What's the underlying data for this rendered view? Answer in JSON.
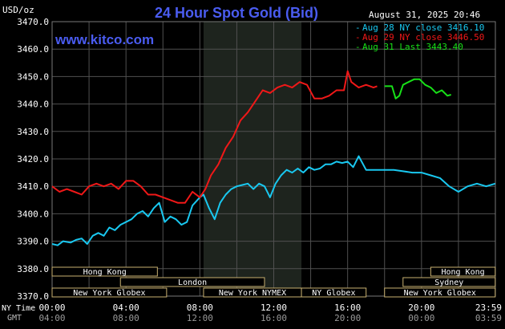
{
  "chart_data": {
    "type": "line",
    "title": "24 Hour Spot Gold (Bid)",
    "website": "www.kitco.com",
    "ylabel": "USD/oz",
    "timestamp": "August 31, 2025 20:46",
    "ylim": [
      3370,
      3470
    ],
    "y_ticks": [
      "3470.0",
      "3460.0",
      "3450.0",
      "3440.0",
      "3430.0",
      "3420.0",
      "3410.0",
      "3400.0",
      "3390.0",
      "3380.0",
      "3370.0"
    ],
    "x_row_label_ny": "NY Time",
    "x_row_label_gmt": "GMT",
    "x_ticks_ny": [
      "00:00",
      "04:00",
      "08:00",
      "12:00",
      "16:00",
      "20:00",
      "23:59"
    ],
    "x_ticks_gmt": [
      "04:00",
      "08:00",
      "12:00",
      "16:00",
      "20:00",
      "00:00",
      "03:59"
    ],
    "legend_position": "top-right",
    "colors": {
      "series1": "#19c8f0",
      "series2": "#f01818",
      "series3": "#18e018",
      "title": "#4a5cf0",
      "grid": "#505050"
    },
    "sessions": [
      {
        "label": "Hong Kong",
        "start_h": 0,
        "end_h": 5.7,
        "row": 1
      },
      {
        "label": "London",
        "start_h": 3.7,
        "end_h": 11.5,
        "row": 2
      },
      {
        "label": "New York Globex",
        "start_h": 0,
        "end_h": 6.2,
        "row": 3
      },
      {
        "label": "New York NYMEX",
        "start_h": 8.2,
        "end_h": 13.5,
        "row": 3
      },
      {
        "label": "NY Globex",
        "start_h": 13.5,
        "end_h": 17,
        "row": 3
      },
      {
        "label": "Hong Kong",
        "start_h": 20.5,
        "end_h": 23.99,
        "row": 1
      },
      {
        "label": "Sydney",
        "start_h": 19,
        "end_h": 23.99,
        "row": 2
      },
      {
        "label": "New York Globex",
        "start_h": 18,
        "end_h": 23.99,
        "row": 3
      }
    ],
    "series": [
      {
        "name": "Aug 28 NY close 3416.10",
        "x": [
          0,
          0.3,
          0.6,
          1,
          1.3,
          1.6,
          1.9,
          2.2,
          2.5,
          2.8,
          3.1,
          3.4,
          3.7,
          4,
          4.3,
          4.6,
          4.9,
          5.2,
          5.5,
          5.8,
          6.1,
          6.4,
          6.7,
          7,
          7.3,
          7.6,
          8,
          8.2,
          8.5,
          8.8,
          9.1,
          9.4,
          9.7,
          10,
          10.3,
          10.6,
          10.9,
          11.2,
          11.5,
          11.8,
          12.1,
          12.4,
          12.7,
          13,
          13.3,
          13.6,
          13.9,
          14.2,
          14.5,
          14.8,
          15.1,
          15.4,
          15.7,
          16,
          16.3,
          16.6,
          17,
          17.5,
          18,
          18.5,
          19,
          19.5,
          20,
          20.5,
          21,
          21.5,
          22,
          22.5,
          23,
          23.5,
          23.99
        ],
        "values": [
          3389,
          3388.5,
          3390,
          3389.5,
          3390.5,
          3391,
          3389,
          3392,
          3393,
          3392,
          3395,
          3394,
          3396,
          3397,
          3398,
          3400,
          3401,
          3399,
          3402,
          3404,
          3397,
          3399,
          3398,
          3396,
          3397,
          3403,
          3406,
          3407,
          3402,
          3398,
          3404,
          3407,
          3409,
          3410,
          3410.5,
          3411,
          3409,
          3411,
          3410,
          3406,
          3411,
          3414,
          3416,
          3415,
          3416.5,
          3415,
          3417,
          3416,
          3416.5,
          3418,
          3418,
          3419,
          3418.5,
          3419,
          3417,
          3421,
          3416,
          3416,
          3416,
          3416,
          3415.5,
          3415,
          3415,
          3414,
          3413,
          3410,
          3408,
          3410,
          3411,
          3410,
          3411
        ]
      },
      {
        "name": "Aug 29 NY close 3446.50",
        "x": [
          0,
          0.4,
          0.8,
          1.2,
          1.6,
          2,
          2.4,
          2.8,
          3.2,
          3.6,
          4,
          4.4,
          4.8,
          5.2,
          5.6,
          6,
          6.4,
          6.8,
          7.2,
          7.6,
          8,
          8.3,
          8.6,
          9,
          9.4,
          9.8,
          10.2,
          10.6,
          11,
          11.4,
          11.8,
          12.2,
          12.6,
          13,
          13.4,
          13.8,
          14.2,
          14.6,
          15,
          15.4,
          15.8,
          16,
          16.2,
          16.6,
          17,
          17.4,
          17.6
        ],
        "values": [
          3410,
          3408,
          3409,
          3408,
          3407,
          3410,
          3411,
          3410,
          3411,
          3409,
          3412,
          3412,
          3410,
          3407,
          3407,
          3406,
          3405,
          3404,
          3404,
          3408,
          3406,
          3409,
          3414,
          3418,
          3424,
          3428,
          3434,
          3437,
          3441,
          3445,
          3444,
          3446,
          3447,
          3446,
          3448,
          3447,
          3442,
          3442,
          3443,
          3445,
          3445,
          3452,
          3448,
          3446,
          3447,
          3446,
          3446.5
        ]
      },
      {
        "name": "Aug 31 Last 3443.40",
        "x": [
          18,
          18.4,
          18.6,
          18.8,
          19,
          19.3,
          19.6,
          19.9,
          20.2,
          20.5,
          20.8,
          21.1,
          21.4,
          21.6
        ],
        "values": [
          3446.5,
          3446.5,
          3442,
          3443,
          3447,
          3448,
          3449,
          3449,
          3447,
          3446,
          3444,
          3445,
          3443,
          3443.4
        ]
      }
    ]
  }
}
